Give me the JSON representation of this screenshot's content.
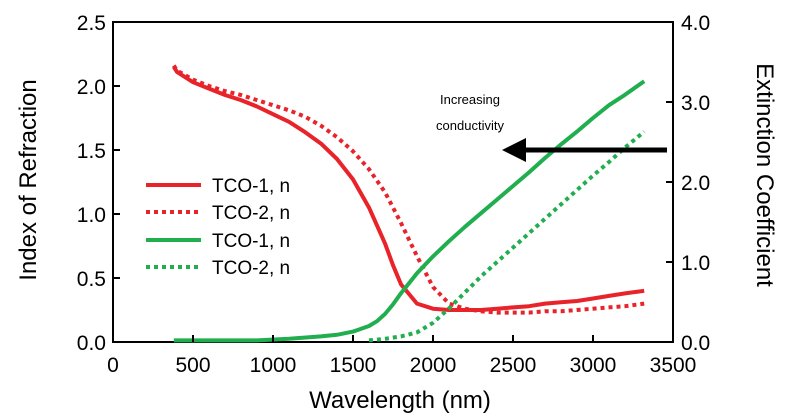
{
  "chart_data": {
    "type": "line",
    "title": "",
    "xlabel": "Wavelength (nm)",
    "ylabel": "Index of Refraction",
    "y2label": "Extinction Coefficient",
    "xlim": [
      0,
      3500
    ],
    "ylim": [
      0,
      2.5
    ],
    "y2lim": [
      0,
      4.0
    ],
    "xticks": [
      "0",
      "500",
      "1000",
      "1500",
      "2000",
      "2500",
      "3000",
      "3500"
    ],
    "yticks": [
      "0.0",
      "0.5",
      "1.0",
      "1.5",
      "2.0",
      "2.5"
    ],
    "y2ticks": [
      "0.0",
      "1.0",
      "2.0",
      "3.0",
      "4.0"
    ],
    "grid": false,
    "legend_position": "left",
    "annotation": {
      "line1": "Increasing",
      "line2": "conductivity",
      "arrow_direction": "left"
    },
    "colors": {
      "red": "#e8232a",
      "green": "#21ae4f"
    },
    "series": [
      {
        "name": "TCO-1, n",
        "axis": "left",
        "color": "#e8232a",
        "dash": "solid",
        "x": [
          380,
          400,
          500,
          600,
          700,
          800,
          900,
          1000,
          1100,
          1200,
          1300,
          1400,
          1500,
          1600,
          1700,
          1750,
          1800,
          1900,
          2000,
          2100,
          2200,
          2300,
          2400,
          2500,
          2600,
          2700,
          2800,
          2900,
          3000,
          3100,
          3200,
          3320
        ],
        "y": [
          2.15,
          2.11,
          2.03,
          1.98,
          1.93,
          1.89,
          1.84,
          1.78,
          1.72,
          1.64,
          1.55,
          1.43,
          1.27,
          1.05,
          0.77,
          0.6,
          0.45,
          0.3,
          0.26,
          0.25,
          0.25,
          0.25,
          0.26,
          0.27,
          0.28,
          0.3,
          0.31,
          0.32,
          0.34,
          0.36,
          0.38,
          0.4
        ]
      },
      {
        "name": "TCO-2, n",
        "axis": "left",
        "color": "#e8232a",
        "dash": "dotted",
        "x": [
          380,
          400,
          500,
          600,
          700,
          800,
          900,
          1000,
          1100,
          1200,
          1300,
          1400,
          1500,
          1600,
          1700,
          1800,
          1900,
          2000,
          2100,
          2200,
          2300,
          2400,
          2500,
          2600,
          2700,
          2800,
          2900,
          3000,
          3100,
          3200,
          3320
        ],
        "y": [
          2.16,
          2.12,
          2.05,
          2.0,
          1.96,
          1.93,
          1.89,
          1.85,
          1.81,
          1.76,
          1.69,
          1.6,
          1.49,
          1.35,
          1.17,
          0.93,
          0.67,
          0.43,
          0.3,
          0.26,
          0.24,
          0.23,
          0.23,
          0.23,
          0.24,
          0.24,
          0.25,
          0.26,
          0.27,
          0.28,
          0.3
        ]
      },
      {
        "name": "TCO-1, n",
        "axis": "right",
        "color": "#21ae4f",
        "dash": "solid",
        "x": [
          380,
          500,
          700,
          900,
          1100,
          1300,
          1400,
          1500,
          1600,
          1650,
          1700,
          1750,
          1800,
          1900,
          2000,
          2100,
          2200,
          2300,
          2400,
          2500,
          2600,
          2700,
          2800,
          2900,
          3000,
          3100,
          3200,
          3320
        ],
        "y": [
          0.02,
          0.02,
          0.02,
          0.02,
          0.04,
          0.07,
          0.09,
          0.13,
          0.2,
          0.26,
          0.35,
          0.47,
          0.61,
          0.86,
          1.07,
          1.26,
          1.44,
          1.61,
          1.78,
          1.95,
          2.12,
          2.3,
          2.47,
          2.63,
          2.8,
          2.96,
          3.09,
          3.26
        ]
      },
      {
        "name": "TCO-2, n",
        "axis": "right",
        "color": "#21ae4f",
        "dash": "dotted",
        "x": [
          1600,
          1700,
          1800,
          1900,
          2000,
          2100,
          2200,
          2300,
          2400,
          2500,
          2600,
          2700,
          2800,
          2900,
          3000,
          3100,
          3200,
          3320
        ],
        "y": [
          0.02,
          0.04,
          0.07,
          0.12,
          0.24,
          0.42,
          0.62,
          0.82,
          1.0,
          1.18,
          1.36,
          1.54,
          1.72,
          1.9,
          2.08,
          2.25,
          2.43,
          2.63
        ]
      }
    ]
  }
}
